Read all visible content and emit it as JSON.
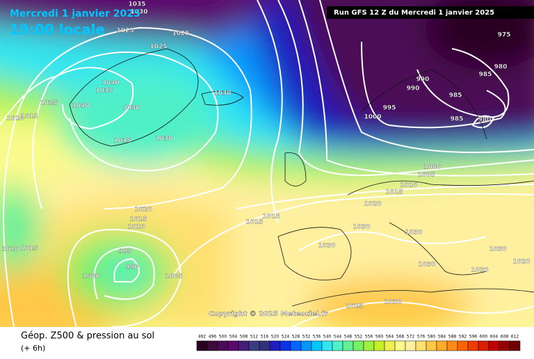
{
  "header": {
    "date": "Mercredi 1 janvier 2025",
    "time": "19:00 locale",
    "run": "Run GFS 12 Z du Mercredi 1 janvier 2025"
  },
  "copyright": "Copyright © 2025 Meteociel.fr",
  "footer": {
    "title": "Géop. Z500 & pression au sol",
    "lead": "(+ 6h)"
  },
  "legend": {
    "values": [
      492,
      496,
      500,
      504,
      508,
      512,
      516,
      520,
      524,
      528,
      532,
      536,
      540,
      544,
      548,
      552,
      556,
      560,
      564,
      568,
      572,
      576,
      580,
      584,
      588,
      592,
      596,
      600,
      604,
      608,
      612
    ],
    "colors": [
      "#2a0020",
      "#3c0a3c",
      "#4b0a55",
      "#5a0a6e",
      "#461e78",
      "#3c3c82",
      "#32327a",
      "#1e1ebe",
      "#0a32e6",
      "#0064ff",
      "#0096ff",
      "#00c8ff",
      "#32e6f0",
      "#50f0c8",
      "#64f096",
      "#78f064",
      "#a0f03c",
      "#c8f028",
      "#f0f050",
      "#fafa8c",
      "#fff0a0",
      "#ffe070",
      "#ffc846",
      "#ffaa28",
      "#ff8c14",
      "#ff6400",
      "#f03c00",
      "#dc1e00",
      "#be0000",
      "#960000",
      "#6e0000"
    ]
  },
  "isobars": [
    1035,
    1030,
    1025,
    1025,
    1025,
    1040,
    1035,
    1025,
    1040,
    1030,
    1030,
    1010,
    1015,
    1035,
    1030,
    975,
    980,
    985,
    990,
    990,
    985,
    995,
    1000,
    985,
    980,
    1000,
    1005,
    1010,
    1015,
    1020,
    1020,
    1015,
    1010,
    1015,
    1015,
    1030,
    1030,
    1010,
    1015,
    995,
    990,
    1000,
    1005,
    1030,
    1030,
    1030,
    1030,
    1020,
    1025,
    1030
  ]
}
